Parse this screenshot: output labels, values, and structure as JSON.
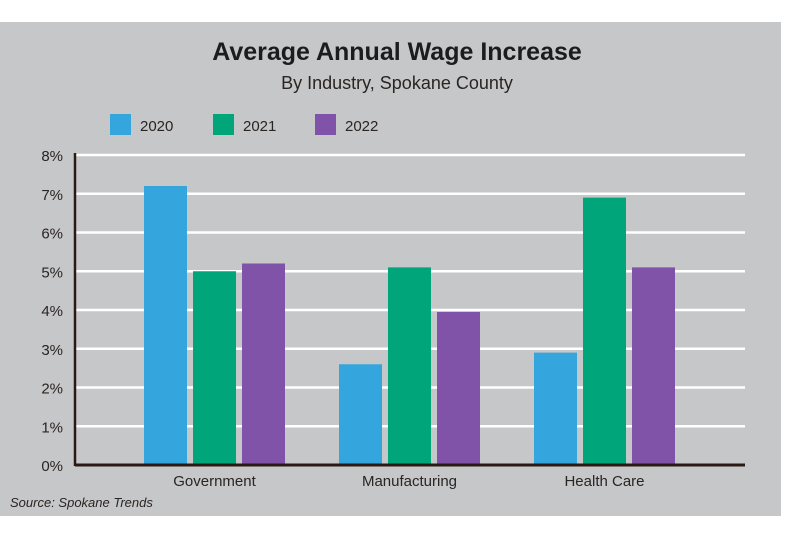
{
  "chart_data": {
    "type": "bar",
    "title": "Average Annual Wage Increase",
    "subtitle": "By Industry, Spokane County",
    "categories": [
      "Government",
      "Manufacturing",
      "Health Care"
    ],
    "series": [
      {
        "name": "2020",
        "color": "#35a5de",
        "values": [
          7.2,
          2.6,
          2.9
        ]
      },
      {
        "name": "2021",
        "color": "#00a57a",
        "values": [
          5.0,
          5.1,
          6.9
        ]
      },
      {
        "name": "2022",
        "color": "#8052a8",
        "values": [
          5.2,
          3.95,
          5.1
        ]
      }
    ],
    "yticks": [
      "0%",
      "1%",
      "2%",
      "3%",
      "4%",
      "5%",
      "6%",
      "7%",
      "8%"
    ],
    "ylim": [
      0,
      8
    ],
    "xlabel": "",
    "ylabel": "",
    "grid": true,
    "legend": "top-left",
    "source": "Source: Spokane Trends"
  }
}
